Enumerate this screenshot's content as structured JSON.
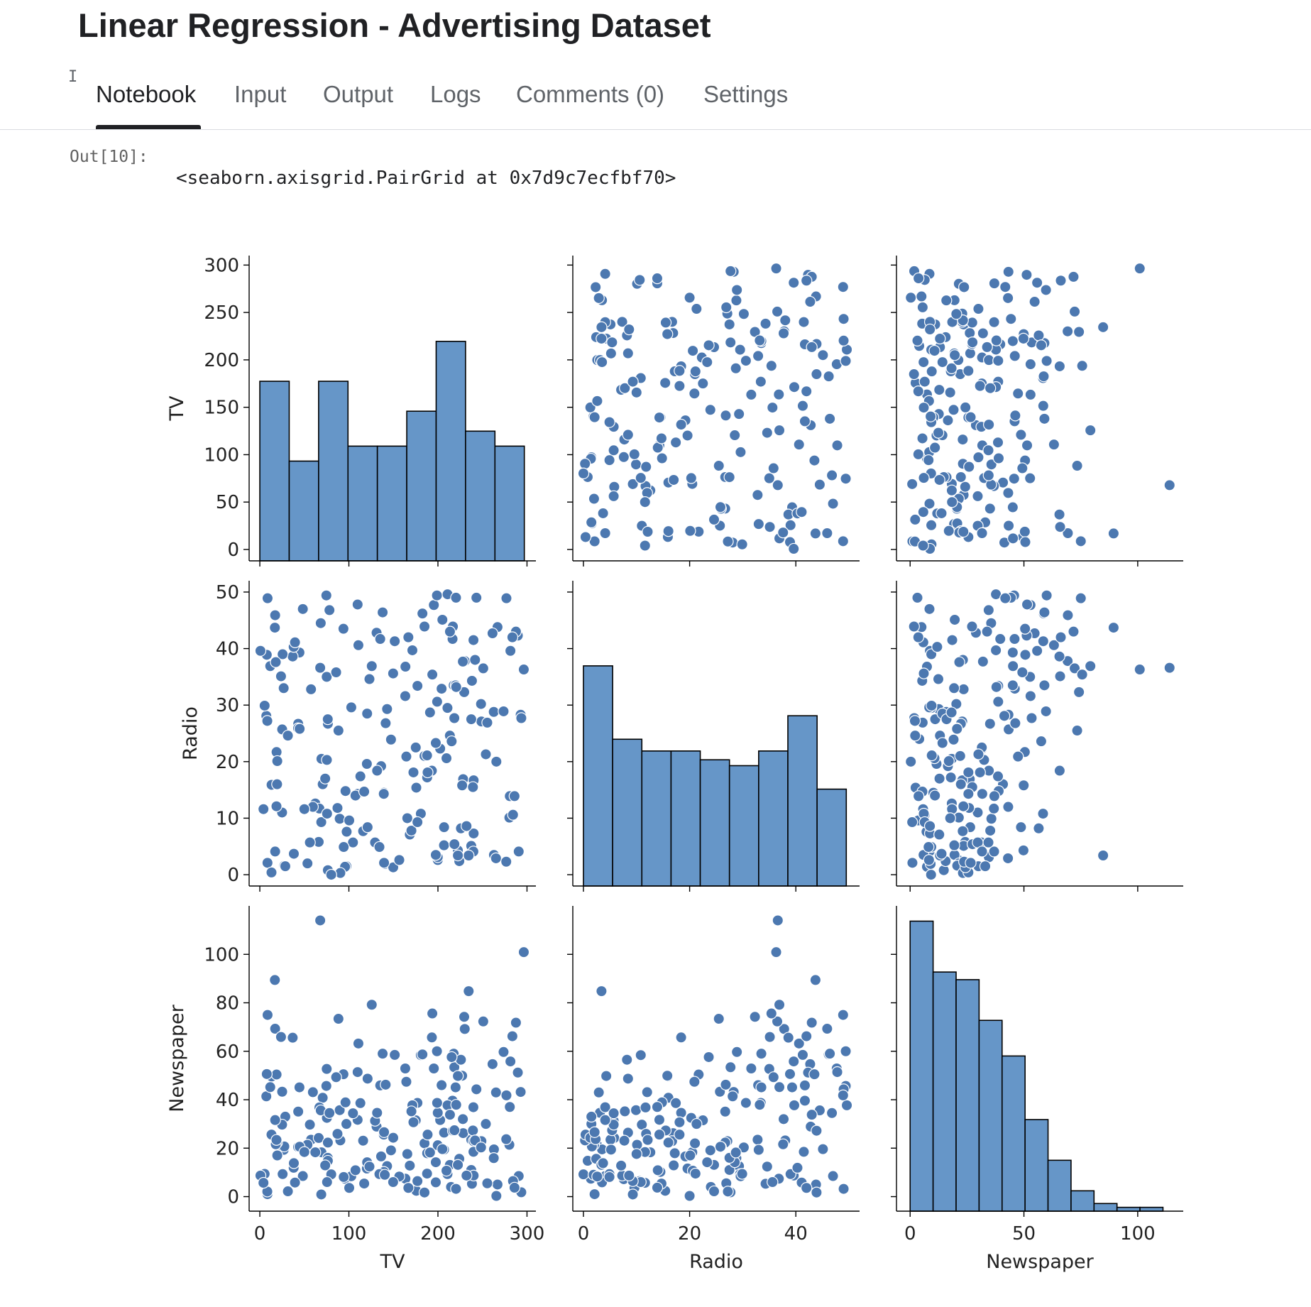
{
  "title": "Linear Regression - Advertising Dataset",
  "cursor_glyph": "I",
  "tabs": [
    {
      "label": "Notebook",
      "active": true
    },
    {
      "label": "Input",
      "active": false
    },
    {
      "label": "Output",
      "active": false
    },
    {
      "label": "Logs",
      "active": false
    },
    {
      "label": "Comments (0)",
      "active": false
    },
    {
      "label": "Settings",
      "active": false
    }
  ],
  "cell": {
    "prompt": "Out[10]:",
    "output_text": "<seaborn.axisgrid.PairGrid at 0x7d9c7ecfbf70>"
  },
  "colors": {
    "marker": "#4c78b0",
    "bar": "#6696c8",
    "edge": "#000000"
  },
  "chart_data": {
    "type": "scatter",
    "variables": [
      "TV",
      "Radio",
      "Newspaper"
    ],
    "axis": {
      "TV": {
        "range": [
          -12,
          310
        ],
        "ticks": [
          0,
          100,
          200,
          300
        ],
        "diag_ticks": [
          0,
          50,
          100,
          150,
          200,
          250,
          300
        ]
      },
      "Radio": {
        "range": [
          -2,
          52
        ],
        "ticks": [
          0,
          20,
          40
        ],
        "diag_ticks": [
          0,
          10,
          20,
          30,
          40,
          50
        ]
      },
      "Newspaper": {
        "range": [
          -6,
          120
        ],
        "ticks": [
          0,
          50,
          100
        ],
        "diag_ticks": [
          0,
          20,
          40,
          60,
          80,
          100
        ]
      }
    },
    "histograms": {
      "TV": {
        "bin_start": 0,
        "bin_width": 33,
        "counts": [
          18,
          10,
          18,
          11.5,
          11.5,
          15,
          22,
          13,
          11.5
        ],
        "count_max": 30.6
      },
      "Radio": {
        "bin_start": 0,
        "bin_width": 5.5,
        "counts": [
          37.5,
          25,
          23,
          23,
          21.5,
          20.5,
          23,
          29,
          16.5
        ],
        "count_max": 52
      },
      "Newspaper": {
        "bin_start": 0,
        "bin_width": 10.1,
        "counts": [
          114,
          94,
          91,
          75,
          61,
          36,
          20,
          8,
          3,
          1.5,
          1.5
        ],
        "count_max": 120
      }
    },
    "points": [
      [
        230.1,
        37.8,
        69.2
      ],
      [
        44.5,
        39.3,
        45.1
      ],
      [
        17.2,
        45.9,
        69.3
      ],
      [
        151.5,
        41.3,
        58.5
      ],
      [
        180.8,
        10.8,
        58.4
      ],
      [
        8.7,
        48.9,
        75.0
      ],
      [
        57.5,
        32.8,
        23.5
      ],
      [
        120.2,
        19.6,
        11.6
      ],
      [
        8.6,
        2.1,
        1.0
      ],
      [
        199.8,
        2.6,
        21.2
      ],
      [
        66.1,
        5.8,
        24.2
      ],
      [
        214.7,
        24.0,
        4.0
      ],
      [
        23.8,
        35.1,
        65.9
      ],
      [
        97.5,
        7.6,
        7.2
      ],
      [
        204.1,
        32.9,
        46.0
      ],
      [
        195.4,
        47.7,
        52.9
      ],
      [
        67.8,
        36.6,
        114.0
      ],
      [
        281.4,
        39.6,
        55.8
      ],
      [
        69.2,
        20.5,
        18.3
      ],
      [
        147.3,
        23.9,
        19.1
      ],
      [
        218.4,
        27.7,
        53.4
      ],
      [
        237.4,
        5.1,
        23.5
      ],
      [
        13.2,
        15.9,
        49.6
      ],
      [
        228.3,
        16.9,
        26.2
      ],
      [
        62.3,
        12.6,
        18.3
      ],
      [
        262.9,
        3.5,
        19.5
      ],
      [
        142.9,
        29.3,
        12.6
      ],
      [
        240.1,
        16.7,
        22.9
      ],
      [
        248.8,
        27.1,
        22.9
      ],
      [
        70.6,
        16.0,
        40.8
      ],
      [
        292.9,
        28.3,
        43.2
      ],
      [
        112.9,
        17.4,
        38.6
      ],
      [
        97.2,
        1.5,
        30.0
      ],
      [
        265.6,
        20.0,
        0.3
      ],
      [
        95.7,
        1.4,
        7.4
      ],
      [
        290.7,
        4.1,
        8.5
      ],
      [
        266.9,
        43.8,
        5.0
      ],
      [
        74.7,
        49.4,
        45.7
      ],
      [
        43.1,
        26.7,
        35.1
      ],
      [
        228.0,
        37.7,
        32.0
      ],
      [
        202.5,
        22.3,
        31.6
      ],
      [
        177.0,
        33.4,
        38.7
      ],
      [
        293.6,
        27.7,
        1.8
      ],
      [
        206.9,
        8.4,
        26.4
      ],
      [
        25.1,
        25.7,
        43.3
      ],
      [
        175.1,
        22.5,
        31.5
      ],
      [
        89.7,
        9.9,
        35.7
      ],
      [
        239.9,
        41.5,
        18.5
      ],
      [
        227.2,
        15.8,
        49.9
      ],
      [
        66.9,
        11.7,
        36.8
      ],
      [
        199.8,
        3.1,
        34.6
      ],
      [
        100.4,
        9.6,
        3.6
      ],
      [
        216.4,
        41.7,
        39.6
      ],
      [
        182.6,
        46.2,
        58.7
      ],
      [
        262.7,
        28.8,
        15.9
      ],
      [
        198.9,
        49.4,
        60.0
      ],
      [
        7.3,
        28.1,
        41.4
      ],
      [
        136.2,
        19.2,
        16.6
      ],
      [
        210.8,
        49.6,
        37.7
      ],
      [
        210.7,
        29.5,
        9.3
      ],
      [
        53.5,
        2.0,
        21.4
      ],
      [
        261.3,
        42.7,
        54.7
      ],
      [
        239.3,
        15.5,
        27.3
      ],
      [
        102.7,
        29.6,
        8.4
      ],
      [
        131.1,
        42.8,
        28.9
      ],
      [
        69.0,
        9.3,
        0.9
      ],
      [
        31.5,
        24.6,
        2.2
      ],
      [
        139.3,
        14.5,
        10.2
      ],
      [
        237.4,
        27.5,
        11.0
      ],
      [
        216.8,
        43.9,
        27.2
      ],
      [
        199.1,
        30.6,
        38.7
      ],
      [
        109.8,
        14.3,
        31.7
      ],
      [
        26.8,
        33.0,
        19.3
      ],
      [
        129.4,
        5.7,
        31.3
      ],
      [
        213.4,
        24.6,
        13.1
      ],
      [
        16.9,
        43.7,
        89.4
      ],
      [
        27.5,
        1.6,
        20.7
      ],
      [
        120.5,
        28.5,
        14.2
      ],
      [
        5.4,
        29.9,
        9.4
      ],
      [
        116.0,
        7.7,
        23.1
      ],
      [
        76.4,
        26.7,
        22.3
      ],
      [
        239.8,
        4.1,
        36.9
      ],
      [
        75.3,
        20.3,
        32.5
      ],
      [
        68.4,
        44.5,
        35.6
      ],
      [
        213.5,
        43.0,
        33.8
      ],
      [
        193.2,
        18.4,
        65.7
      ],
      [
        76.3,
        27.5,
        16.0
      ],
      [
        110.7,
        40.6,
        63.2
      ],
      [
        88.3,
        25.5,
        73.4
      ],
      [
        109.8,
        47.8,
        51.4
      ],
      [
        134.3,
        4.9,
        9.3
      ],
      [
        28.6,
        1.5,
        33.0
      ],
      [
        217.7,
        33.5,
        59.0
      ],
      [
        250.9,
        36.5,
        72.3
      ],
      [
        107.4,
        14.0,
        10.9
      ],
      [
        163.3,
        31.6,
        52.9
      ],
      [
        197.6,
        3.5,
        5.9
      ],
      [
        184.9,
        21.0,
        22.0
      ],
      [
        289.7,
        42.3,
        51.2
      ],
      [
        135.2,
        41.7,
        45.9
      ],
      [
        222.4,
        4.3,
        49.8
      ],
      [
        296.4,
        36.3,
        100.9
      ],
      [
        280.2,
        10.1,
        21.4
      ],
      [
        187.9,
        17.2,
        17.9
      ],
      [
        238.2,
        34.3,
        5.3
      ],
      [
        137.9,
        46.4,
        59.0
      ],
      [
        25.0,
        11.0,
        29.7
      ],
      [
        90.4,
        0.3,
        23.2
      ],
      [
        13.1,
        0.4,
        25.6
      ],
      [
        255.4,
        26.9,
        5.5
      ],
      [
        225.8,
        8.2,
        56.5
      ],
      [
        241.7,
        38.0,
        23.2
      ],
      [
        175.7,
        15.4,
        2.4
      ],
      [
        209.6,
        20.6,
        10.7
      ],
      [
        78.2,
        46.8,
        34.5
      ],
      [
        75.1,
        35.0,
        52.7
      ],
      [
        139.2,
        14.3,
        25.6
      ],
      [
        76.4,
        0.8,
        14.8
      ],
      [
        125.7,
        36.9,
        79.2
      ],
      [
        19.4,
        16.0,
        22.3
      ],
      [
        141.3,
        26.8,
        46.2
      ],
      [
        18.8,
        21.7,
        50.4
      ],
      [
        224.0,
        2.4,
        15.6
      ],
      [
        123.1,
        34.6,
        12.4
      ],
      [
        229.5,
        32.3,
        74.2
      ],
      [
        87.2,
        11.8,
        25.9
      ],
      [
        7.8,
        38.9,
        50.6
      ],
      [
        80.2,
        0.0,
        9.2
      ],
      [
        220.3,
        49.0,
        3.2
      ],
      [
        59.6,
        12.0,
        43.1
      ],
      [
        0.7,
        39.6,
        8.7
      ],
      [
        265.2,
        2.9,
        43.0
      ],
      [
        8.4,
        27.2,
        2.1
      ],
      [
        219.8,
        33.5,
        45.1
      ],
      [
        36.9,
        38.6,
        65.6
      ],
      [
        48.3,
        47.0,
        8.5
      ],
      [
        25.6,
        39.0,
        9.3
      ],
      [
        273.7,
        28.9,
        59.7
      ],
      [
        43.0,
        25.9,
        20.5
      ],
      [
        184.9,
        43.9,
        1.7
      ],
      [
        73.4,
        17.0,
        12.9
      ],
      [
        193.7,
        35.4,
        75.6
      ],
      [
        220.5,
        33.2,
        37.9
      ],
      [
        104.6,
        5.7,
        34.4
      ],
      [
        96.2,
        14.8,
        38.9
      ],
      [
        140.3,
        1.9,
        9.0
      ],
      [
        240.1,
        7.3,
        8.7
      ],
      [
        243.2,
        49.0,
        44.3
      ],
      [
        38.0,
        40.3,
        11.9
      ],
      [
        44.7,
        25.8,
        20.6
      ],
      [
        280.7,
        13.9,
        37.0
      ],
      [
        121.0,
        8.4,
        48.7
      ],
      [
        197.6,
        23.3,
        14.2
      ],
      [
        171.3,
        39.7,
        37.7
      ],
      [
        187.8,
        21.1,
        9.5
      ],
      [
        4.1,
        11.6,
        5.7
      ],
      [
        93.9,
        43.5,
        50.5
      ],
      [
        149.8,
        1.3,
        24.3
      ],
      [
        11.7,
        36.9,
        45.2
      ],
      [
        131.7,
        18.4,
        34.6
      ],
      [
        172.5,
        18.1,
        30.7
      ],
      [
        85.7,
        35.8,
        49.3
      ],
      [
        188.4,
        18.1,
        25.6
      ],
      [
        163.5,
        36.8,
        7.4
      ],
      [
        117.2,
        14.7,
        5.4
      ],
      [
        234.5,
        3.4,
        84.8
      ],
      [
        17.9,
        37.6,
        21.6
      ],
      [
        206.8,
        5.2,
        19.4
      ],
      [
        215.4,
        23.6,
        57.6
      ],
      [
        284.3,
        10.6,
        6.4
      ],
      [
        50.0,
        11.6,
        18.4
      ],
      [
        164.5,
        20.9,
        47.4
      ],
      [
        19.6,
        20.1,
        17.0
      ],
      [
        168.4,
        7.1,
        12.8
      ],
      [
        222.4,
        3.4,
        13.1
      ],
      [
        276.9,
        48.9,
        41.8
      ],
      [
        248.4,
        30.2,
        20.3
      ],
      [
        170.2,
        7.8,
        35.2
      ],
      [
        276.7,
        2.3,
        23.7
      ],
      [
        165.6,
        10.0,
        17.6
      ],
      [
        156.6,
        2.6,
        8.3
      ],
      [
        218.5,
        5.4,
        27.4
      ],
      [
        56.2,
        5.7,
        29.7
      ],
      [
        287.6,
        43.0,
        71.8
      ],
      [
        253.8,
        21.3,
        30.0
      ],
      [
        205.0,
        45.1,
        19.6
      ],
      [
        139.5,
        2.1,
        26.6
      ],
      [
        191.1,
        28.7,
        18.2
      ],
      [
        286.0,
        13.9,
        3.7
      ],
      [
        18.7,
        12.1,
        23.4
      ],
      [
        39.5,
        41.1,
        5.8
      ],
      [
        75.5,
        10.8,
        6.0
      ],
      [
        17.2,
        4.1,
        31.6
      ],
      [
        166.8,
        42.0,
        3.6
      ],
      [
        149.7,
        35.6,
        6.0
      ],
      [
        38.2,
        3.7,
        13.8
      ],
      [
        94.2,
        4.9,
        8.1
      ],
      [
        177.0,
        9.3,
        6.4
      ],
      [
        283.6,
        42.0,
        66.2
      ],
      [
        232.1,
        8.6,
        8.7
      ]
    ]
  }
}
